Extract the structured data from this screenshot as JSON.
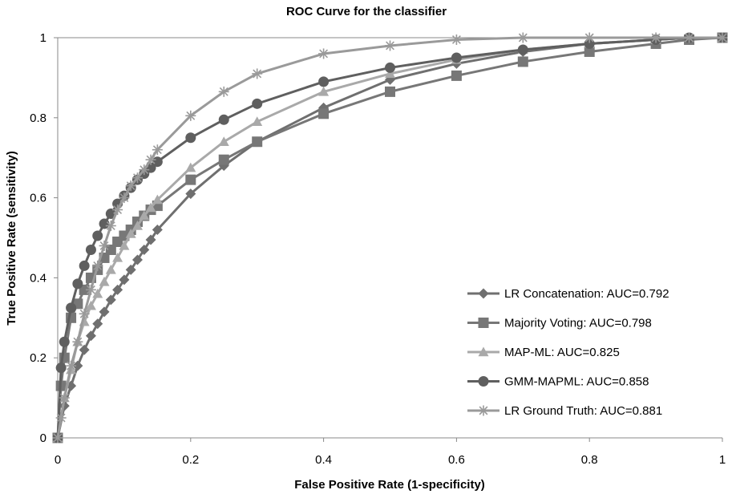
{
  "chart_data": {
    "type": "line",
    "title": "ROC Curve for the classifier",
    "xlabel": "False Positive Rate (1-specificity)",
    "ylabel": "True Positive Rate (sensitivity)",
    "xlim": [
      0,
      1
    ],
    "ylim": [
      0,
      1
    ],
    "xticks": [
      "0",
      "0.2",
      "0.4",
      "0.6",
      "0.8",
      "1"
    ],
    "yticks": [
      "0",
      "0.2",
      "0.4",
      "0.6",
      "0.8",
      "1"
    ],
    "grid": false,
    "legend_position": "bottom-right",
    "series": [
      {
        "name": "LR Concatenation: AUC=0.792",
        "marker": "diamond",
        "color": "#6f6f6f",
        "x": [
          0,
          0.01,
          0.02,
          0.03,
          0.04,
          0.05,
          0.06,
          0.07,
          0.08,
          0.09,
          0.1,
          0.11,
          0.12,
          0.13,
          0.14,
          0.15,
          0.2,
          0.25,
          0.3,
          0.4,
          0.5,
          0.6,
          0.7,
          0.8,
          0.9,
          0.95,
          1
        ],
        "y": [
          0,
          0.08,
          0.13,
          0.18,
          0.22,
          0.255,
          0.285,
          0.315,
          0.345,
          0.37,
          0.395,
          0.42,
          0.445,
          0.47,
          0.495,
          0.52,
          0.61,
          0.68,
          0.74,
          0.825,
          0.895,
          0.935,
          0.965,
          0.985,
          0.995,
          1,
          1
        ]
      },
      {
        "name": "Majority Voting: AUC=0.798",
        "marker": "square",
        "color": "#777777",
        "x": [
          0,
          0.005,
          0.01,
          0.02,
          0.03,
          0.04,
          0.05,
          0.06,
          0.07,
          0.08,
          0.09,
          0.1,
          0.11,
          0.12,
          0.13,
          0.14,
          0.15,
          0.2,
          0.25,
          0.3,
          0.4,
          0.5,
          0.6,
          0.7,
          0.8,
          0.9,
          0.95,
          1
        ],
        "y": [
          0,
          0.13,
          0.2,
          0.3,
          0.335,
          0.37,
          0.4,
          0.42,
          0.45,
          0.47,
          0.49,
          0.505,
          0.52,
          0.54,
          0.555,
          0.57,
          0.58,
          0.645,
          0.695,
          0.74,
          0.81,
          0.865,
          0.905,
          0.94,
          0.965,
          0.985,
          0.995,
          1
        ]
      },
      {
        "name": "MAP-ML: AUC=0.825",
        "marker": "triangle",
        "color": "#a9a9a9",
        "x": [
          0,
          0.01,
          0.02,
          0.03,
          0.04,
          0.05,
          0.06,
          0.07,
          0.08,
          0.09,
          0.1,
          0.11,
          0.12,
          0.13,
          0.14,
          0.15,
          0.2,
          0.25,
          0.3,
          0.4,
          0.5,
          0.6,
          0.7,
          0.8,
          0.9,
          0.95,
          1
        ],
        "y": [
          0,
          0.1,
          0.17,
          0.24,
          0.29,
          0.33,
          0.36,
          0.39,
          0.42,
          0.45,
          0.48,
          0.51,
          0.53,
          0.555,
          0.575,
          0.595,
          0.675,
          0.74,
          0.79,
          0.865,
          0.91,
          0.945,
          0.97,
          0.985,
          0.995,
          1,
          1
        ]
      },
      {
        "name": "GMM-MAPML: AUC=0.858",
        "marker": "circle",
        "color": "#5f5f5f",
        "x": [
          0,
          0.005,
          0.01,
          0.02,
          0.03,
          0.04,
          0.05,
          0.06,
          0.07,
          0.08,
          0.09,
          0.1,
          0.11,
          0.12,
          0.13,
          0.14,
          0.15,
          0.2,
          0.25,
          0.3,
          0.4,
          0.5,
          0.6,
          0.7,
          0.8,
          0.9,
          0.95,
          1
        ],
        "y": [
          0,
          0.175,
          0.24,
          0.325,
          0.385,
          0.43,
          0.47,
          0.505,
          0.535,
          0.56,
          0.585,
          0.605,
          0.625,
          0.645,
          0.66,
          0.675,
          0.69,
          0.75,
          0.795,
          0.835,
          0.89,
          0.925,
          0.95,
          0.97,
          0.985,
          0.995,
          1,
          1
        ]
      },
      {
        "name": "LR Ground Truth: AUC=0.881",
        "marker": "asterisk",
        "color": "#9a9a9a",
        "x": [
          0,
          0.005,
          0.01,
          0.02,
          0.03,
          0.04,
          0.05,
          0.06,
          0.07,
          0.08,
          0.09,
          0.1,
          0.11,
          0.12,
          0.13,
          0.14,
          0.15,
          0.2,
          0.25,
          0.3,
          0.4,
          0.5,
          0.6,
          0.7,
          0.8,
          0.9,
          0.95,
          1
        ],
        "y": [
          0,
          0.05,
          0.1,
          0.18,
          0.24,
          0.31,
          0.37,
          0.43,
          0.48,
          0.53,
          0.57,
          0.6,
          0.63,
          0.65,
          0.67,
          0.695,
          0.72,
          0.805,
          0.865,
          0.91,
          0.96,
          0.98,
          0.995,
          1,
          1,
          1,
          1,
          1
        ]
      }
    ]
  }
}
